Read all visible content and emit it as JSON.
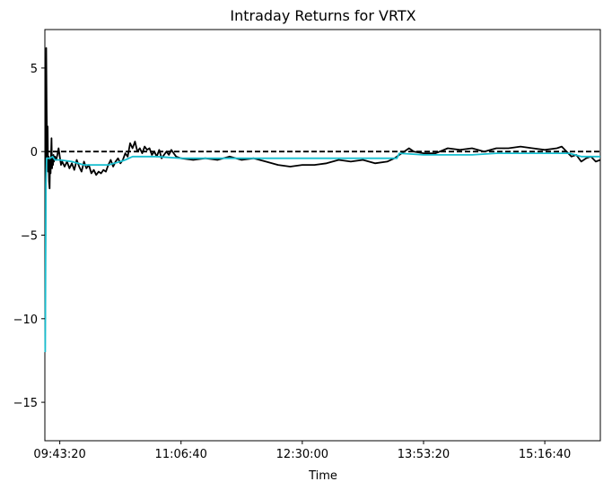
{
  "chart_data": {
    "type": "line",
    "title": "Intraday Returns for VRTX",
    "xlabel": "Time",
    "ylabel": "",
    "xlim_seconds": [
      34385,
      57290
    ],
    "ylim": [
      -17.3,
      7.3
    ],
    "grid": false,
    "x_ticks": [
      {
        "t": 35000,
        "label": "09:43:20"
      },
      {
        "t": 40000,
        "label": "11:06:40"
      },
      {
        "t": 45000,
        "label": "12:30:00"
      },
      {
        "t": 50000,
        "label": "13:53:20"
      },
      {
        "t": 55000,
        "label": "15:16:40"
      }
    ],
    "y_ticks": [
      {
        "v": 5,
        "label": "5"
      },
      {
        "v": 0,
        "label": "0"
      },
      {
        "v": -5,
        "label": "−5"
      },
      {
        "v": -10,
        "label": "−10"
      },
      {
        "v": -15,
        "label": "−15"
      }
    ],
    "baseline": {
      "value": 0,
      "color": "#000000",
      "style": "dashed"
    },
    "series": [
      {
        "color": "#000000",
        "points": [
          [
            34400,
            -10.0
          ],
          [
            34420,
            -1.0
          ],
          [
            34440,
            6.2
          ],
          [
            34460,
            2.5
          ],
          [
            34480,
            -0.3
          ],
          [
            34500,
            1.5
          ],
          [
            34520,
            -1.2
          ],
          [
            34540,
            -0.3
          ],
          [
            34560,
            -1.8
          ],
          [
            34580,
            -2.2
          ],
          [
            34600,
            -0.5
          ],
          [
            34620,
            -1.3
          ],
          [
            34640,
            -0.2
          ],
          [
            34660,
            0.8
          ],
          [
            34680,
            -1.0
          ],
          [
            34700,
            -0.4
          ],
          [
            34720,
            -0.8
          ],
          [
            34740,
            -0.2
          ],
          [
            34760,
            -0.6
          ],
          [
            34800,
            -0.3
          ],
          [
            34850,
            -0.5
          ],
          [
            34900,
            -0.2
          ],
          [
            34950,
            0.2
          ],
          [
            35000,
            -0.3
          ],
          [
            35050,
            -0.8
          ],
          [
            35100,
            -0.6
          ],
          [
            35200,
            -0.9
          ],
          [
            35300,
            -0.6
          ],
          [
            35400,
            -1.0
          ],
          [
            35500,
            -0.7
          ],
          [
            35600,
            -1.1
          ],
          [
            35700,
            -0.5
          ],
          [
            35800,
            -0.9
          ],
          [
            35900,
            -1.2
          ],
          [
            36000,
            -0.6
          ],
          [
            36100,
            -1.0
          ],
          [
            36200,
            -0.8
          ],
          [
            36300,
            -1.3
          ],
          [
            36400,
            -1.1
          ],
          [
            36500,
            -1.4
          ],
          [
            36600,
            -1.2
          ],
          [
            36700,
            -1.3
          ],
          [
            36800,
            -1.1
          ],
          [
            36900,
            -1.2
          ],
          [
            37000,
            -0.8
          ],
          [
            37100,
            -0.5
          ],
          [
            37200,
            -0.9
          ],
          [
            37300,
            -0.6
          ],
          [
            37400,
            -0.4
          ],
          [
            37500,
            -0.7
          ],
          [
            37600,
            -0.5
          ],
          [
            37700,
            -0.1
          ],
          [
            37800,
            -0.3
          ],
          [
            37900,
            0.5
          ],
          [
            38000,
            0.2
          ],
          [
            38100,
            0.6
          ],
          [
            38200,
            0.0
          ],
          [
            38300,
            0.2
          ],
          [
            38400,
            -0.1
          ],
          [
            38500,
            0.3
          ],
          [
            38600,
            0.1
          ],
          [
            38700,
            0.2
          ],
          [
            38800,
            -0.2
          ],
          [
            38900,
            0.0
          ],
          [
            39000,
            -0.3
          ],
          [
            39100,
            0.1
          ],
          [
            39200,
            -0.4
          ],
          [
            39300,
            -0.2
          ],
          [
            39400,
            0.0
          ],
          [
            39500,
            -0.2
          ],
          [
            39600,
            0.1
          ],
          [
            39700,
            -0.1
          ],
          [
            39800,
            -0.3
          ],
          [
            40000,
            -0.4
          ],
          [
            40500,
            -0.5
          ],
          [
            41000,
            -0.4
          ],
          [
            41500,
            -0.5
          ],
          [
            42000,
            -0.3
          ],
          [
            42500,
            -0.5
          ],
          [
            43000,
            -0.4
          ],
          [
            43500,
            -0.6
          ],
          [
            44000,
            -0.8
          ],
          [
            44500,
            -0.9
          ],
          [
            45000,
            -0.8
          ],
          [
            45500,
            -0.8
          ],
          [
            46000,
            -0.7
          ],
          [
            46500,
            -0.5
          ],
          [
            47000,
            -0.6
          ],
          [
            47500,
            -0.5
          ],
          [
            48000,
            -0.7
          ],
          [
            48500,
            -0.6
          ],
          [
            48800,
            -0.4
          ],
          [
            49000,
            -0.2
          ],
          [
            49200,
            0.0
          ],
          [
            49400,
            0.2
          ],
          [
            49600,
            0.0
          ],
          [
            50000,
            -0.1
          ],
          [
            50500,
            -0.1
          ],
          [
            51000,
            0.2
          ],
          [
            51500,
            0.1
          ],
          [
            52000,
            0.2
          ],
          [
            52500,
            0.0
          ],
          [
            53000,
            0.2
          ],
          [
            53500,
            0.2
          ],
          [
            54000,
            0.3
          ],
          [
            54500,
            0.2
          ],
          [
            55000,
            0.1
          ],
          [
            55500,
            0.2
          ],
          [
            55700,
            0.3
          ],
          [
            55900,
            0.0
          ],
          [
            56100,
            -0.3
          ],
          [
            56300,
            -0.2
          ],
          [
            56500,
            -0.6
          ],
          [
            56700,
            -0.4
          ],
          [
            56900,
            -0.3
          ],
          [
            57100,
            -0.6
          ],
          [
            57290,
            -0.5
          ]
        ]
      },
      {
        "color": "#17becf",
        "points": [
          [
            34400,
            -12.0
          ],
          [
            34430,
            -2.0
          ],
          [
            34460,
            -0.4
          ],
          [
            34600,
            -0.4
          ],
          [
            34700,
            -0.3
          ],
          [
            34800,
            -0.5
          ],
          [
            35000,
            -0.5
          ],
          [
            35500,
            -0.6
          ],
          [
            36000,
            -0.8
          ],
          [
            36500,
            -0.8
          ],
          [
            37000,
            -0.8
          ],
          [
            37500,
            -0.6
          ],
          [
            37700,
            -0.5
          ],
          [
            38000,
            -0.3
          ],
          [
            38500,
            -0.3
          ],
          [
            39000,
            -0.3
          ],
          [
            40000,
            -0.4
          ],
          [
            42000,
            -0.4
          ],
          [
            44000,
            -0.4
          ],
          [
            46000,
            -0.4
          ],
          [
            48000,
            -0.4
          ],
          [
            48900,
            -0.4
          ],
          [
            49000,
            -0.1
          ],
          [
            50000,
            -0.2
          ],
          [
            51000,
            -0.2
          ],
          [
            52000,
            -0.2
          ],
          [
            53000,
            -0.1
          ],
          [
            54000,
            -0.1
          ],
          [
            55000,
            -0.1
          ],
          [
            56000,
            -0.1
          ],
          [
            56500,
            -0.3
          ],
          [
            57000,
            -0.3
          ],
          [
            57290,
            -0.3
          ]
        ]
      }
    ]
  }
}
